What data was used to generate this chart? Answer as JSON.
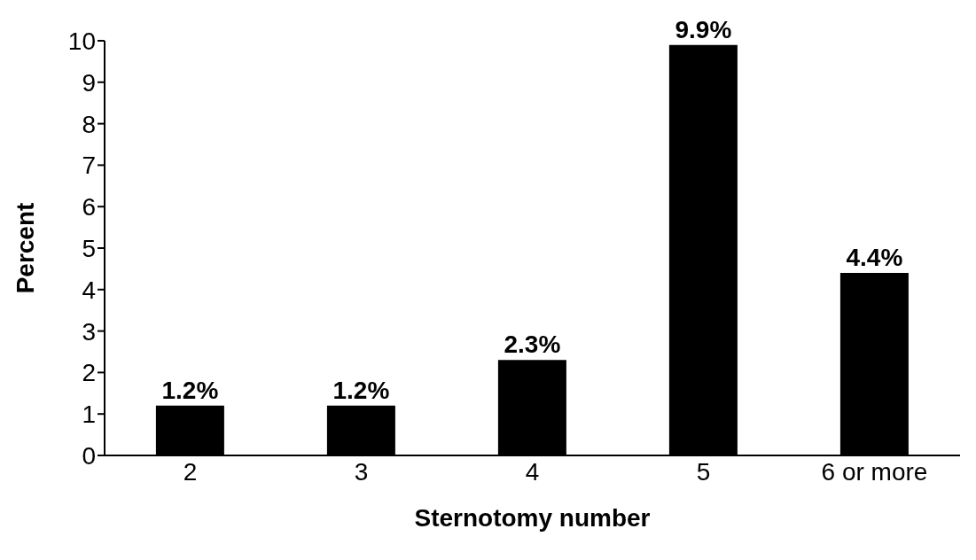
{
  "chart_data": {
    "type": "bar",
    "xlabel": "Sternotomy number",
    "ylabel": "Percent",
    "categories": [
      "2",
      "3",
      "4",
      "5",
      "6 or more"
    ],
    "values": [
      1.2,
      1.2,
      2.3,
      9.9,
      4.4
    ],
    "value_labels": [
      "1.2%",
      "1.2%",
      "2.3%",
      "9.9%",
      "4.4%"
    ],
    "color": "#000000",
    "ylim": [
      0,
      10
    ],
    "yticks": [
      0,
      1,
      2,
      3,
      4,
      5,
      6,
      7,
      8,
      9,
      10
    ],
    "grid": false,
    "legend": false
  }
}
